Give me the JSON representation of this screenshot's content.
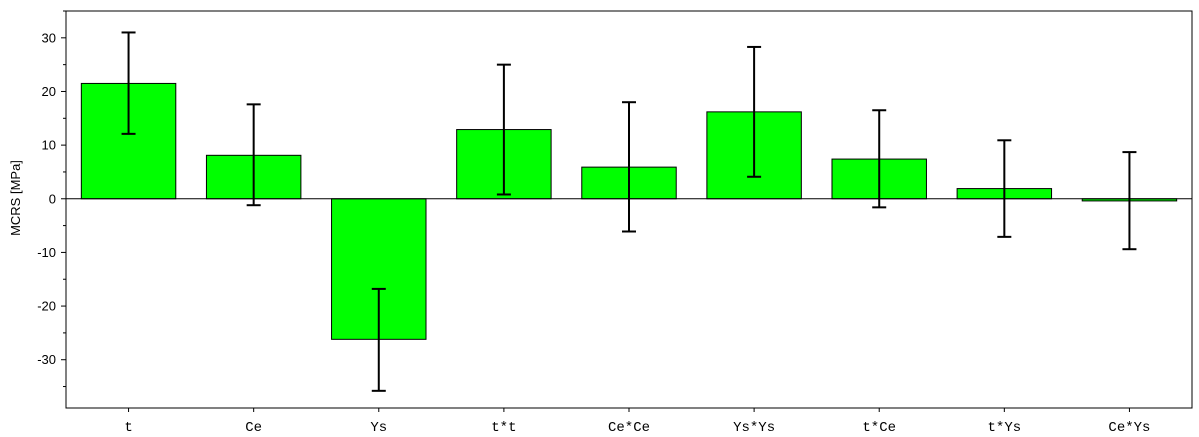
{
  "chart_data": {
    "type": "bar",
    "title": "",
    "xlabel": "",
    "ylabel": "MCRS [MPa]",
    "ylim": [
      -39,
      35
    ],
    "yticks": [
      30,
      20,
      10,
      0,
      -10,
      -20,
      -30
    ],
    "ytick_labels": [
      "30",
      "20",
      "10",
      "0",
      "-10",
      "-20",
      "-30"
    ],
    "grid": false,
    "legend": "none",
    "bar_color": "#00ff00",
    "categories": [
      "t",
      "Ce",
      "Ys",
      "t*t",
      "Ce*Ce",
      "Ys*Ys",
      "t*Ce",
      "t*Ys",
      "Ce*Ys"
    ],
    "values": [
      21.5,
      8.1,
      -26.2,
      12.9,
      5.9,
      16.2,
      7.4,
      1.9,
      -0.4
    ],
    "error_low": [
      12.1,
      -1.2,
      -35.8,
      0.8,
      -6.1,
      4.1,
      -1.6,
      -7.1,
      -9.4
    ],
    "error_high": [
      31.0,
      17.6,
      -16.8,
      25.0,
      18.0,
      28.3,
      16.5,
      10.9,
      8.7
    ]
  }
}
